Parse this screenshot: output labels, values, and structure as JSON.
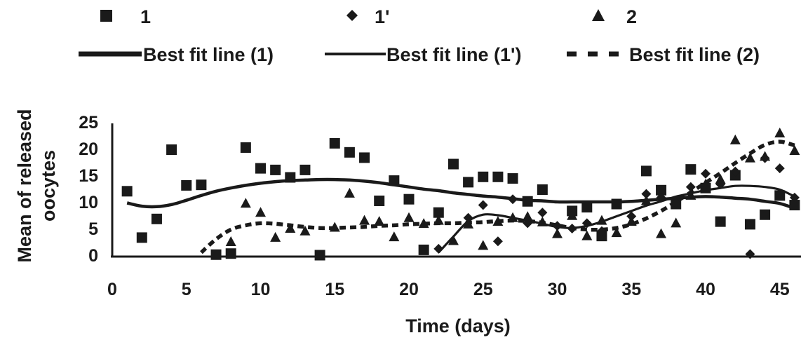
{
  "chart_data": {
    "type": "scatter",
    "title": "",
    "xlabel": "Time (days)",
    "ylabel_lines": [
      "Mean of released",
      "oocytes"
    ],
    "xlim": [
      0,
      46
    ],
    "ylim": [
      0,
      25
    ],
    "x_ticks": [
      0,
      5,
      10,
      15,
      20,
      25,
      30,
      35,
      40,
      45
    ],
    "y_ticks": [
      0,
      5,
      10,
      15,
      20,
      25
    ],
    "grid": false,
    "legend_placement": "top",
    "series": [
      {
        "name": "1",
        "marker": "square",
        "points": [
          [
            1,
            12
          ],
          [
            2,
            3.3
          ],
          [
            3,
            6.8
          ],
          [
            4,
            19.8
          ],
          [
            5,
            13.1
          ],
          [
            6,
            13.2
          ],
          [
            7,
            0.1
          ],
          [
            8,
            0.3
          ],
          [
            9,
            20.2
          ],
          [
            10,
            16.3
          ],
          [
            11,
            16
          ],
          [
            12,
            14.6
          ],
          [
            13,
            16
          ],
          [
            14,
            0
          ],
          [
            15,
            21
          ],
          [
            16,
            19.3
          ],
          [
            17,
            18.3
          ],
          [
            18,
            10.2
          ],
          [
            19,
            14
          ],
          [
            20,
            10.5
          ],
          [
            21,
            1
          ],
          [
            22,
            8
          ],
          [
            23,
            17.1
          ],
          [
            24,
            13.7
          ],
          [
            25,
            14.7
          ],
          [
            26,
            14.7
          ],
          [
            27,
            14.4
          ],
          [
            28,
            10.1
          ],
          [
            29,
            12.3
          ],
          [
            31,
            8.3
          ],
          [
            32,
            9
          ],
          [
            33,
            3.6
          ],
          [
            34,
            9.6
          ],
          [
            36,
            15.8
          ],
          [
            37,
            12.2
          ],
          [
            38,
            9.6
          ],
          [
            39,
            16.1
          ],
          [
            40,
            12.6
          ],
          [
            41,
            6.3
          ],
          [
            42,
            15
          ],
          [
            43,
            5.8
          ],
          [
            44,
            7.6
          ],
          [
            45,
            11.2
          ],
          [
            46,
            9.4
          ]
        ]
      },
      {
        "name": "1'",
        "marker": "diamond",
        "points": [
          [
            22,
            1.2
          ],
          [
            24,
            7
          ],
          [
            25,
            9.4
          ],
          [
            26,
            2.6
          ],
          [
            27,
            10.5
          ],
          [
            28,
            6
          ],
          [
            29,
            8
          ],
          [
            30,
            5.5
          ],
          [
            31,
            5
          ],
          [
            32,
            6
          ],
          [
            33,
            4.5
          ],
          [
            35,
            7.3
          ],
          [
            36,
            11.5
          ],
          [
            37,
            10.8
          ],
          [
            38,
            9.8
          ],
          [
            39,
            12.8
          ],
          [
            40,
            15.3
          ],
          [
            41,
            13.3
          ],
          [
            42,
            15.7
          ],
          [
            43,
            0.2
          ],
          [
            44,
            18.2
          ],
          [
            45,
            16.3
          ],
          [
            46,
            10.8
          ]
        ]
      },
      {
        "name": "2",
        "marker": "triangle",
        "points": [
          [
            8,
            2.5
          ],
          [
            9,
            9.7
          ],
          [
            10,
            8
          ],
          [
            11,
            3.3
          ],
          [
            12,
            5
          ],
          [
            13,
            4.5
          ],
          [
            15,
            5.2
          ],
          [
            16,
            11.6
          ],
          [
            17,
            6.5
          ],
          [
            18,
            6.3
          ],
          [
            19,
            3.4
          ],
          [
            20,
            7
          ],
          [
            21,
            5.9
          ],
          [
            22,
            6.5
          ],
          [
            23,
            2.7
          ],
          [
            24,
            5.8
          ],
          [
            25,
            1.8
          ],
          [
            26,
            6.3
          ],
          [
            27,
            7
          ],
          [
            28,
            7.2
          ],
          [
            29,
            6.2
          ],
          [
            30,
            4
          ],
          [
            31,
            7.4
          ],
          [
            32,
            3.6
          ],
          [
            33,
            6.5
          ],
          [
            34,
            4.2
          ],
          [
            35,
            6.3
          ],
          [
            36,
            10.2
          ],
          [
            37,
            4
          ],
          [
            38,
            6
          ],
          [
            39,
            11.2
          ],
          [
            40,
            13.3
          ],
          [
            41,
            14.2
          ],
          [
            42,
            21.6
          ],
          [
            43,
            18.2
          ],
          [
            44,
            18.5
          ],
          [
            45,
            22.9
          ],
          [
            46,
            19.6
          ]
        ]
      },
      {
        "name": "Best fit line (1)",
        "kind": "line",
        "style": "solid-thick",
        "points": [
          [
            1,
            9.8
          ],
          [
            2,
            9.2
          ],
          [
            3,
            9.1
          ],
          [
            4,
            9.5
          ],
          [
            5,
            10.3
          ],
          [
            6,
            11.2
          ],
          [
            7,
            12
          ],
          [
            8,
            12.6
          ],
          [
            9,
            13.1
          ],
          [
            10,
            13.5
          ],
          [
            11,
            13.8
          ],
          [
            12,
            14
          ],
          [
            13,
            14.1
          ],
          [
            14,
            14.2
          ],
          [
            15,
            14.2
          ],
          [
            16,
            14.1
          ],
          [
            17,
            13.9
          ],
          [
            18,
            13.6
          ],
          [
            19,
            13.2
          ],
          [
            20,
            12.8
          ],
          [
            21,
            12.4
          ],
          [
            22,
            12.1
          ],
          [
            23,
            11.7
          ],
          [
            24,
            11.4
          ],
          [
            25,
            11.1
          ],
          [
            26,
            10.9
          ],
          [
            27,
            10.6
          ],
          [
            28,
            10.3
          ],
          [
            29,
            10.2
          ],
          [
            30,
            10
          ],
          [
            31,
            10
          ],
          [
            32,
            10
          ],
          [
            33,
            10
          ],
          [
            34,
            10
          ],
          [
            35,
            10.1
          ],
          [
            36,
            10.3
          ],
          [
            37,
            10.5
          ],
          [
            38,
            10.7
          ],
          [
            39,
            10.9
          ],
          [
            40,
            11
          ],
          [
            41,
            10.9
          ],
          [
            42,
            10.7
          ],
          [
            43,
            10.5
          ],
          [
            44,
            10.1
          ],
          [
            45,
            9.7
          ],
          [
            46,
            8.8
          ]
        ]
      },
      {
        "name": "Best fit line (1')",
        "kind": "line",
        "style": "solid-thin",
        "points": [
          [
            22,
            0.5
          ],
          [
            23,
            3.5
          ],
          [
            24,
            6.4
          ],
          [
            25,
            7.6
          ],
          [
            26,
            7.5
          ],
          [
            27,
            7
          ],
          [
            28,
            6.5
          ],
          [
            29,
            5.9
          ],
          [
            30,
            5.3
          ],
          [
            31,
            5.1
          ],
          [
            32,
            5.5
          ],
          [
            33,
            6.3
          ],
          [
            34,
            7.3
          ],
          [
            35,
            8.3
          ],
          [
            36,
            9.3
          ],
          [
            37,
            10.1
          ],
          [
            38,
            11
          ],
          [
            39,
            11.6
          ],
          [
            40,
            12.2
          ],
          [
            41,
            12.6
          ],
          [
            42,
            13
          ],
          [
            43,
            13
          ],
          [
            44,
            12.8
          ],
          [
            45,
            12.3
          ],
          [
            46,
            11
          ]
        ]
      },
      {
        "name": "Best fit line (2)",
        "kind": "line",
        "style": "dashed",
        "points": [
          [
            6,
            0.5
          ],
          [
            7,
            3
          ],
          [
            8,
            4.8
          ],
          [
            9,
            5.6
          ],
          [
            10,
            6
          ],
          [
            11,
            5.9
          ],
          [
            12,
            5.6
          ],
          [
            13,
            5.3
          ],
          [
            14,
            5.1
          ],
          [
            15,
            5.1
          ],
          [
            16,
            5.2
          ],
          [
            17,
            5.3
          ],
          [
            18,
            5.5
          ],
          [
            19,
            5.6
          ],
          [
            20,
            5.8
          ],
          [
            21,
            5.9
          ],
          [
            22,
            6
          ],
          [
            23,
            6
          ],
          [
            24,
            6.1
          ],
          [
            25,
            6.2
          ],
          [
            26,
            6.4
          ],
          [
            27,
            6.5
          ],
          [
            28,
            6.4
          ],
          [
            29,
            6.1
          ],
          [
            30,
            5.6
          ],
          [
            31,
            5.1
          ],
          [
            32,
            4.8
          ],
          [
            33,
            4.8
          ],
          [
            34,
            5.1
          ],
          [
            35,
            5.8
          ],
          [
            36,
            6.9
          ],
          [
            37,
            8.3
          ],
          [
            38,
            10
          ],
          [
            39,
            11.8
          ],
          [
            40,
            13.6
          ],
          [
            41,
            15.4
          ],
          [
            42,
            17.3
          ],
          [
            43,
            19.1
          ],
          [
            44,
            20.7
          ],
          [
            45,
            21.3
          ],
          [
            46,
            20.6
          ]
        ]
      }
    ],
    "legend_labels": [
      "1",
      "1'",
      "2",
      "Best fit line (1)",
      "Best fit line (1')",
      "Best fit line (2)"
    ]
  }
}
